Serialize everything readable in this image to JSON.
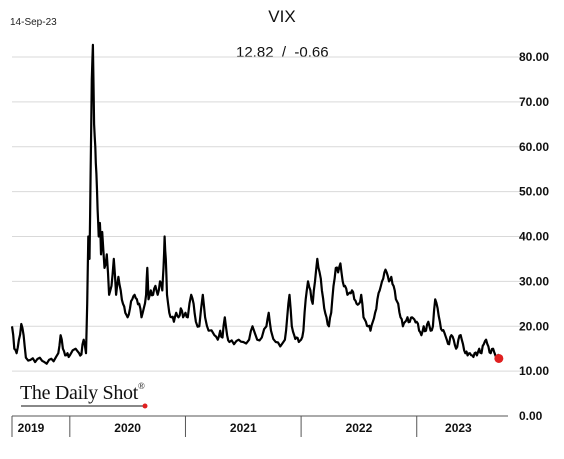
{
  "header": {
    "date": "14-Sep-23",
    "title": "VIX",
    "readout": {
      "level": "12.82",
      "separator": "/",
      "change": "-0.66"
    }
  },
  "logo": {
    "text": "The Daily Shot",
    "mark": "®"
  },
  "colors": {
    "line": "#000000",
    "last_point": "#e02020",
    "grid": "#d9d9d9",
    "axis": "#555555"
  },
  "chart_data": {
    "type": "line",
    "title": "VIX",
    "xlabel": "",
    "ylabel": "",
    "ylim": [
      0,
      85
    ],
    "y_ticks": [
      "0.00",
      "10.00",
      "20.00",
      "30.00",
      "40.00",
      "50.00",
      "60.00",
      "70.00",
      "80.00"
    ],
    "y_tick_values": [
      0,
      10,
      20,
      30,
      40,
      50,
      60,
      70,
      80
    ],
    "x_range": [
      2019.5,
      2023.72
    ],
    "year_boundaries": [
      2020,
      2021,
      2022,
      2023
    ],
    "x_tick_labels": [
      {
        "label": "2019",
        "x": 2019.5
      },
      {
        "label": "2020",
        "x": 2020.5
      },
      {
        "label": "2021",
        "x": 2021.5
      },
      {
        "label": "2022",
        "x": 2022.5
      },
      {
        "label": "2023",
        "x": 2023.36
      }
    ],
    "grid": true,
    "y_axis_side": "right",
    "series": [
      {
        "points": [
          [
            2019.5,
            20.0
          ],
          [
            2019.52,
            15.0
          ],
          [
            2019.54,
            14.0
          ],
          [
            2019.56,
            17.0
          ],
          [
            2019.58,
            20.5
          ],
          [
            2019.6,
            18.0
          ],
          [
            2019.62,
            13.0
          ],
          [
            2019.66,
            12.5
          ],
          [
            2019.7,
            12.0
          ],
          [
            2019.74,
            13.0
          ],
          [
            2019.78,
            12.0
          ],
          [
            2019.82,
            12.5
          ],
          [
            2019.86,
            12.2
          ],
          [
            2019.9,
            14.0
          ],
          [
            2019.92,
            18.0
          ],
          [
            2019.94,
            15.0
          ],
          [
            2019.96,
            13.5
          ],
          [
            2019.98,
            14.0
          ],
          [
            2020.0,
            13.5
          ],
          [
            2020.05,
            15.0
          ],
          [
            2020.08,
            14.0
          ],
          [
            2020.1,
            13.7
          ],
          [
            2020.12,
            17.0
          ],
          [
            2020.14,
            14.0
          ],
          [
            2020.15,
            25.0
          ],
          [
            2020.16,
            40.0
          ],
          [
            2020.17,
            35.0
          ],
          [
            2020.18,
            54.0
          ],
          [
            2020.19,
            75.0
          ],
          [
            2020.2,
            82.7
          ],
          [
            2020.21,
            65.0
          ],
          [
            2020.22,
            60.0
          ],
          [
            2020.23,
            54.0
          ],
          [
            2020.24,
            46.0
          ],
          [
            2020.25,
            40.0
          ],
          [
            2020.26,
            43.0
          ],
          [
            2020.27,
            36.0
          ],
          [
            2020.28,
            41.0
          ],
          [
            2020.3,
            33.0
          ],
          [
            2020.32,
            36.0
          ],
          [
            2020.34,
            27.0
          ],
          [
            2020.36,
            29.0
          ],
          [
            2020.38,
            35.0
          ],
          [
            2020.4,
            27.0
          ],
          [
            2020.42,
            31.0
          ],
          [
            2020.44,
            28.0
          ],
          [
            2020.46,
            25.0
          ],
          [
            2020.48,
            23.0
          ],
          [
            2020.5,
            22.0
          ],
          [
            2020.52,
            24.0
          ],
          [
            2020.54,
            26.0
          ],
          [
            2020.56,
            27.0
          ],
          [
            2020.58,
            26.0
          ],
          [
            2020.6,
            25.0
          ],
          [
            2020.62,
            22.0
          ],
          [
            2020.64,
            24.0
          ],
          [
            2020.66,
            27.0
          ],
          [
            2020.67,
            33.0
          ],
          [
            2020.68,
            26.0
          ],
          [
            2020.7,
            28.0
          ],
          [
            2020.72,
            27.0
          ],
          [
            2020.74,
            29.0
          ],
          [
            2020.76,
            27.0
          ],
          [
            2020.78,
            30.0
          ],
          [
            2020.8,
            28.0
          ],
          [
            2020.81,
            33.0
          ],
          [
            2020.82,
            40.0
          ],
          [
            2020.83,
            35.0
          ],
          [
            2020.84,
            27.0
          ],
          [
            2020.86,
            23.0
          ],
          [
            2020.88,
            22.0
          ],
          [
            2020.9,
            21.0
          ],
          [
            2020.92,
            23.0
          ],
          [
            2020.94,
            22.0
          ],
          [
            2020.96,
            24.0
          ],
          [
            2020.98,
            22.0
          ],
          [
            2021.0,
            23.0
          ],
          [
            2021.02,
            22.0
          ],
          [
            2021.05,
            27.0
          ],
          [
            2021.07,
            25.0
          ],
          [
            2021.09,
            21.0
          ],
          [
            2021.12,
            20.0
          ],
          [
            2021.15,
            27.0
          ],
          [
            2021.17,
            22.0
          ],
          [
            2021.2,
            19.0
          ],
          [
            2021.25,
            18.0
          ],
          [
            2021.28,
            17.0
          ],
          [
            2021.3,
            19.0
          ],
          [
            2021.32,
            17.5
          ],
          [
            2021.34,
            22.0
          ],
          [
            2021.36,
            18.0
          ],
          [
            2021.38,
            16.5
          ],
          [
            2021.42,
            16.0
          ],
          [
            2021.46,
            17.0
          ],
          [
            2021.5,
            16.5
          ],
          [
            2021.55,
            17.0
          ],
          [
            2021.58,
            20.0
          ],
          [
            2021.62,
            17.0
          ],
          [
            2021.66,
            17.5
          ],
          [
            2021.7,
            20.0
          ],
          [
            2021.72,
            23.0
          ],
          [
            2021.74,
            19.0
          ],
          [
            2021.78,
            16.5
          ],
          [
            2021.82,
            15.5
          ],
          [
            2021.86,
            17.0
          ],
          [
            2021.88,
            22.0
          ],
          [
            2021.9,
            27.0
          ],
          [
            2021.92,
            20.0
          ],
          [
            2021.94,
            18.0
          ],
          [
            2021.96,
            17.5
          ],
          [
            2021.98,
            16.5
          ],
          [
            2022.0,
            17.0
          ],
          [
            2022.02,
            19.0
          ],
          [
            2022.04,
            26.0
          ],
          [
            2022.06,
            30.0
          ],
          [
            2022.08,
            28.0
          ],
          [
            2022.1,
            25.0
          ],
          [
            2022.12,
            30.0
          ],
          [
            2022.14,
            35.0
          ],
          [
            2022.16,
            32.0
          ],
          [
            2022.18,
            28.0
          ],
          [
            2022.2,
            24.0
          ],
          [
            2022.22,
            22.0
          ],
          [
            2022.24,
            20.0
          ],
          [
            2022.26,
            23.0
          ],
          [
            2022.28,
            29.0
          ],
          [
            2022.3,
            33.0
          ],
          [
            2022.32,
            32.0
          ],
          [
            2022.34,
            34.0
          ],
          [
            2022.36,
            30.0
          ],
          [
            2022.38,
            29.0
          ],
          [
            2022.4,
            27.0
          ],
          [
            2022.42,
            27.5
          ],
          [
            2022.44,
            28.0
          ],
          [
            2022.46,
            26.0
          ],
          [
            2022.48,
            25.0
          ],
          [
            2022.5,
            25.0
          ],
          [
            2022.52,
            27.0
          ],
          [
            2022.54,
            22.0
          ],
          [
            2022.56,
            21.0
          ],
          [
            2022.58,
            20.0
          ],
          [
            2022.6,
            19.0
          ],
          [
            2022.62,
            21.0
          ],
          [
            2022.64,
            23.0
          ],
          [
            2022.66,
            26.0
          ],
          [
            2022.68,
            28.0
          ],
          [
            2022.7,
            30.0
          ],
          [
            2022.72,
            32.0
          ],
          [
            2022.74,
            32.0
          ],
          [
            2022.76,
            30.0
          ],
          [
            2022.78,
            31.0
          ],
          [
            2022.8,
            29.0
          ],
          [
            2022.82,
            26.0
          ],
          [
            2022.84,
            25.0
          ],
          [
            2022.86,
            22.0
          ],
          [
            2022.88,
            20.0
          ],
          [
            2022.9,
            21.0
          ],
          [
            2022.92,
            22.0
          ],
          [
            2022.94,
            21.0
          ],
          [
            2022.96,
            22.0
          ],
          [
            2022.98,
            21.5
          ],
          [
            2023.0,
            21.0
          ],
          [
            2023.02,
            19.0
          ],
          [
            2023.04,
            18.0
          ],
          [
            2023.06,
            20.0
          ],
          [
            2023.08,
            19.0
          ],
          [
            2023.1,
            21.0
          ],
          [
            2023.12,
            19.0
          ],
          [
            2023.14,
            20.0
          ],
          [
            2023.16,
            26.0
          ],
          [
            2023.18,
            24.0
          ],
          [
            2023.2,
            21.0
          ],
          [
            2023.22,
            19.0
          ],
          [
            2023.24,
            18.5
          ],
          [
            2023.26,
            17.0
          ],
          [
            2023.28,
            16.0
          ],
          [
            2023.3,
            18.0
          ],
          [
            2023.32,
            17.0
          ],
          [
            2023.34,
            15.0
          ],
          [
            2023.36,
            17.0
          ],
          [
            2023.38,
            18.0
          ],
          [
            2023.4,
            16.0
          ],
          [
            2023.42,
            14.0
          ],
          [
            2023.44,
            13.5
          ],
          [
            2023.46,
            14.0
          ],
          [
            2023.48,
            13.5
          ],
          [
            2023.5,
            14.0
          ],
          [
            2023.52,
            13.5
          ],
          [
            2023.54,
            15.0
          ],
          [
            2023.56,
            14.0
          ],
          [
            2023.58,
            16.0
          ],
          [
            2023.6,
            17.0
          ],
          [
            2023.62,
            15.5
          ],
          [
            2023.64,
            14.0
          ],
          [
            2023.66,
            15.0
          ],
          [
            2023.68,
            13.5
          ],
          [
            2023.7,
            13.2
          ],
          [
            2023.71,
            12.82
          ]
        ]
      }
    ],
    "last_point": [
      2023.71,
      12.82
    ]
  }
}
